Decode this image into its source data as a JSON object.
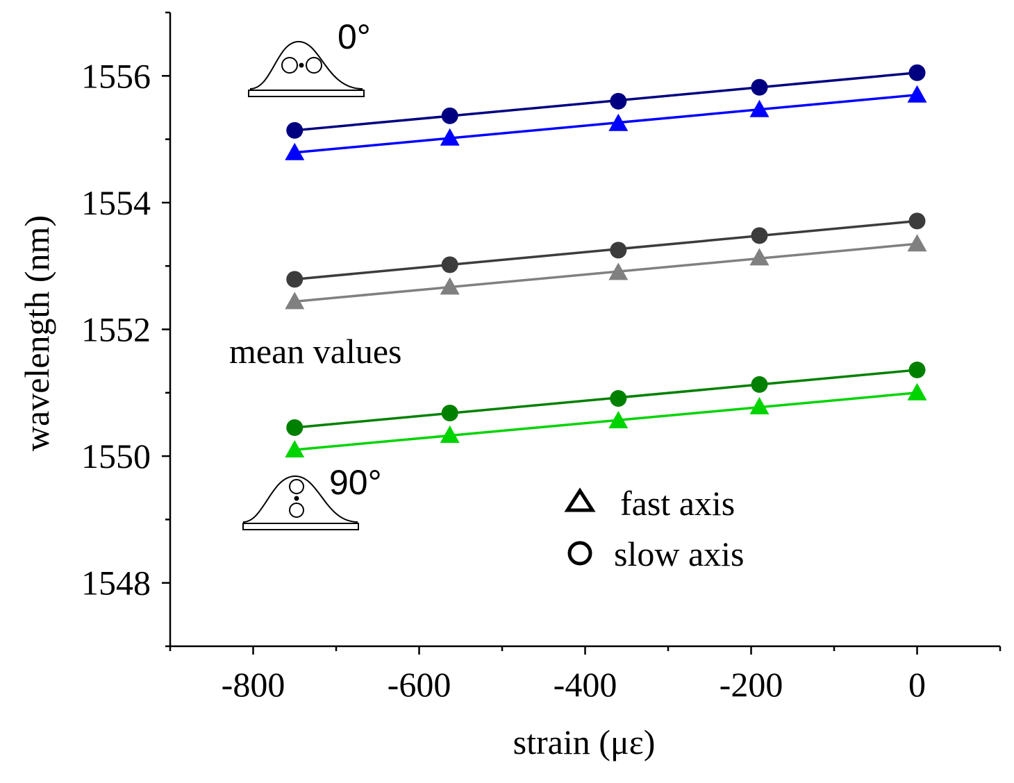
{
  "chart_data": {
    "type": "line",
    "title": "",
    "xlabel": "strain (με)",
    "ylabel": "wavelength (nm)",
    "xlim": [
      -900,
      100
    ],
    "ylim": [
      1547,
      1557
    ],
    "xticks": [
      -800,
      -600,
      -400,
      -200,
      0
    ],
    "xtick_labels": [
      "-800",
      "-600",
      "-400",
      "-200",
      "0"
    ],
    "yticks": [
      1548,
      1550,
      1552,
      1554,
      1556
    ],
    "ytick_labels": [
      "1548",
      "1550",
      "1552",
      "1554",
      "1556"
    ],
    "x": [
      -750,
      -563,
      -360,
      -190,
      0
    ],
    "series": [
      {
        "name": "0° slow axis",
        "marker": "circle",
        "color": "#000080",
        "values": [
          1555.14,
          1555.37,
          1555.6,
          1555.82,
          1556.05
        ]
      },
      {
        "name": "0° fast axis",
        "marker": "triangle",
        "color": "#0000ff",
        "values": [
          1554.79,
          1555.02,
          1555.25,
          1555.47,
          1555.7
        ]
      },
      {
        "name": "mean slow axis",
        "marker": "circle",
        "color": "#3c3c3c",
        "values": [
          1552.79,
          1553.02,
          1553.25,
          1553.48,
          1553.71
        ]
      },
      {
        "name": "mean fast axis",
        "marker": "triangle",
        "color": "#808080",
        "values": [
          1552.44,
          1552.67,
          1552.9,
          1553.13,
          1553.35
        ]
      },
      {
        "name": "90° slow axis",
        "marker": "circle",
        "color": "#008000",
        "values": [
          1550.45,
          1550.68,
          1550.91,
          1551.13,
          1551.36
        ]
      },
      {
        "name": "90° fast axis",
        "marker": "triangle",
        "color": "#00d400",
        "values": [
          1550.1,
          1550.33,
          1550.56,
          1550.78,
          1551.0
        ]
      }
    ],
    "annotations": {
      "top_angle": "0°",
      "bottom_angle": "90°",
      "mean": "mean values"
    },
    "legend": [
      {
        "marker": "triangle",
        "label": "fast axis"
      },
      {
        "marker": "circle",
        "label": "slow axis"
      }
    ]
  }
}
